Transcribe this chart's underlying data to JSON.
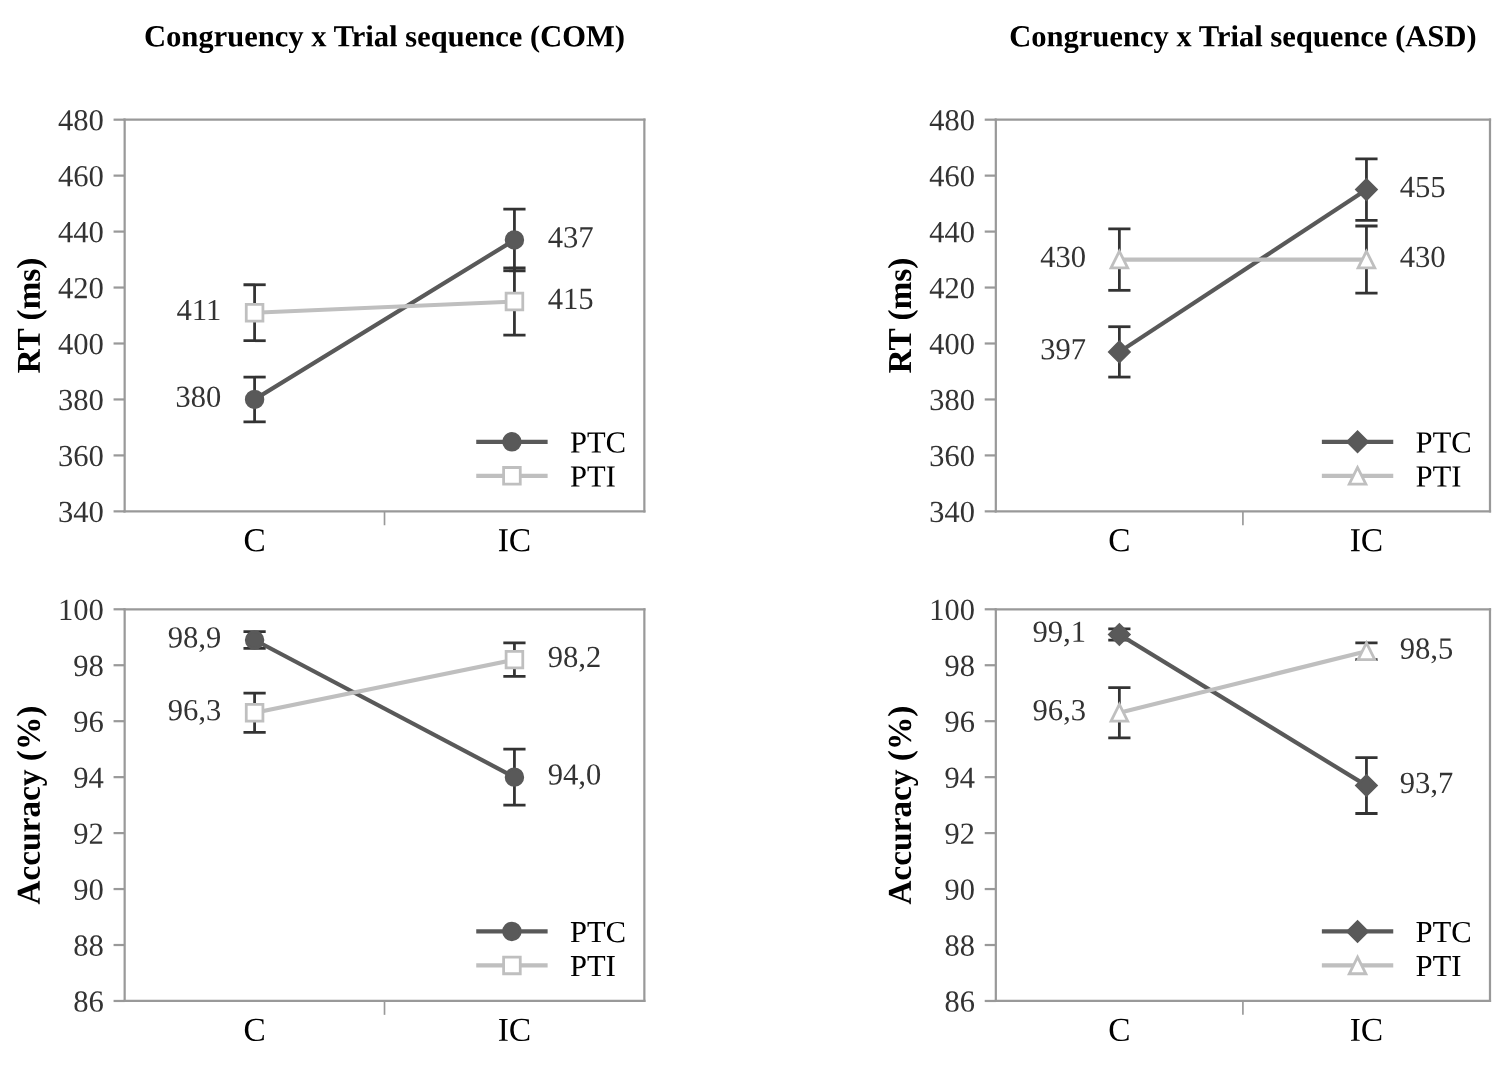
{
  "chart_data": [
    {
      "type": "line",
      "title": "Congruency x Trial sequence (COM)",
      "ylabel": "RT (ms)",
      "categories": [
        "C",
        "IC"
      ],
      "ylim": [
        340,
        480
      ],
      "yticks": [
        340,
        360,
        380,
        400,
        420,
        440,
        460,
        480
      ],
      "grid": false,
      "legend": "bottom right",
      "series": [
        {
          "name": "PTC",
          "color": "#595959",
          "marker": "circle",
          "values": [
            380,
            437
          ],
          "errors": [
            8,
            11
          ],
          "value_labels": [
            "380",
            "437"
          ]
        },
        {
          "name": "PTI",
          "color": "#bfbfbf",
          "marker": "square",
          "values": [
            411,
            415
          ],
          "errors": [
            10,
            12
          ],
          "value_labels": [
            "411",
            "415"
          ]
        }
      ]
    },
    {
      "type": "line",
      "title": "Congruency x Trial sequence (ASD)",
      "ylabel": "RT (ms)",
      "categories": [
        "C",
        "IC"
      ],
      "ylim": [
        340,
        480
      ],
      "yticks": [
        340,
        360,
        380,
        400,
        420,
        440,
        460,
        480
      ],
      "grid": false,
      "legend": "bottom right",
      "series": [
        {
          "name": "PTC",
          "color": "#595959",
          "marker": "diamond",
          "values": [
            397,
            455
          ],
          "errors": [
            9,
            11
          ],
          "value_labels": [
            "397",
            "455"
          ]
        },
        {
          "name": "PTI",
          "color": "#bfbfbf",
          "marker": "triangle",
          "values": [
            430,
            430
          ],
          "errors": [
            11,
            12
          ],
          "value_labels": [
            "430",
            "430"
          ]
        }
      ]
    },
    {
      "type": "line",
      "ylabel": "Accuracy (%)",
      "categories": [
        "C",
        "IC"
      ],
      "ylim": [
        86,
        100
      ],
      "yticks": [
        86,
        88,
        90,
        92,
        94,
        96,
        98,
        100
      ],
      "grid": false,
      "legend": "bottom right",
      "series": [
        {
          "name": "PTC",
          "color": "#595959",
          "marker": "circle",
          "values": [
            98.9,
            94.0
          ],
          "errors": [
            0.3,
            1.0
          ],
          "value_labels": [
            "98,9",
            "94,0"
          ]
        },
        {
          "name": "PTI",
          "color": "#bfbfbf",
          "marker": "square",
          "values": [
            96.3,
            98.2
          ],
          "errors": [
            0.7,
            0.6
          ],
          "value_labels": [
            "96,3",
            "98,2"
          ]
        }
      ]
    },
    {
      "type": "line",
      "ylabel": "Accuracy (%)",
      "categories": [
        "C",
        "IC"
      ],
      "ylim": [
        86,
        100
      ],
      "yticks": [
        86,
        88,
        90,
        92,
        94,
        96,
        98,
        100
      ],
      "grid": false,
      "legend": "bottom right",
      "series": [
        {
          "name": "PTC",
          "color": "#595959",
          "marker": "diamond",
          "values": [
            99.1,
            93.7
          ],
          "errors": [
            0.2,
            1.0
          ],
          "value_labels": [
            "99,1",
            "93,7"
          ]
        },
        {
          "name": "PTI",
          "color": "#bfbfbf",
          "marker": "triangle",
          "values": [
            96.3,
            98.5
          ],
          "errors": [
            0.9,
            0.3
          ],
          "value_labels": [
            "96,3",
            "98,5"
          ]
        }
      ]
    }
  ]
}
